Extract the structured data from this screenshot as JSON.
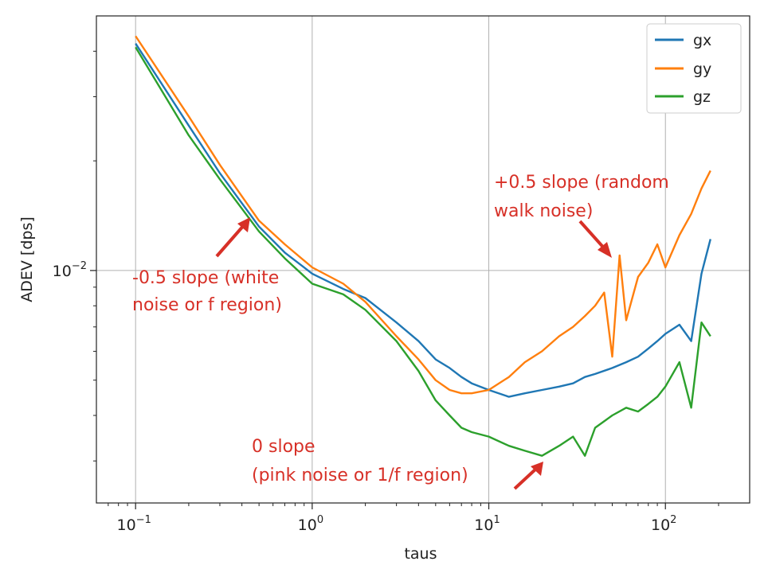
{
  "chart_data": {
    "type": "line",
    "title": "",
    "xlabel": "taus",
    "ylabel": "ADEV [dps]",
    "xscale": "log",
    "yscale": "log",
    "xlim": [
      0.06,
      300
    ],
    "ylim": [
      0.0023,
      0.05
    ],
    "x_ticks": [
      {
        "base": "10",
        "exp": "−1",
        "value": 0.1
      },
      {
        "base": "10",
        "exp": "0",
        "value": 1
      },
      {
        "base": "10",
        "exp": "1",
        "value": 10
      },
      {
        "base": "10",
        "exp": "2",
        "value": 100
      }
    ],
    "y_ticks": [
      {
        "base": "10",
        "exp": "−2",
        "value": 0.01
      }
    ],
    "grid": true,
    "legend": {
      "position": "upper right",
      "entries": [
        {
          "name": "gx",
          "color": "#1f77b4"
        },
        {
          "name": "gy",
          "color": "#ff7f0e"
        },
        {
          "name": "gz",
          "color": "#2ca02c"
        }
      ]
    },
    "series": [
      {
        "name": "gx",
        "color": "#1f77b4",
        "x": [
          0.1,
          0.2,
          0.3,
          0.5,
          0.7,
          1.0,
          1.5,
          2,
          3,
          4,
          5,
          6,
          7,
          8,
          10,
          13,
          16,
          20,
          25,
          30,
          35,
          40,
          50,
          60,
          70,
          80,
          90,
          100,
          120,
          140,
          160,
          180
        ],
        "y": [
          0.042,
          0.025,
          0.0185,
          0.0132,
          0.0112,
          0.0098,
          0.0089,
          0.0084,
          0.0072,
          0.0064,
          0.0057,
          0.0054,
          0.0051,
          0.0049,
          0.0047,
          0.0045,
          0.0046,
          0.0047,
          0.0048,
          0.0049,
          0.0051,
          0.0052,
          0.0054,
          0.0056,
          0.0058,
          0.0061,
          0.0064,
          0.0067,
          0.0071,
          0.0064,
          0.0098,
          0.0122
        ]
      },
      {
        "name": "gy",
        "color": "#ff7f0e",
        "x": [
          0.1,
          0.2,
          0.3,
          0.5,
          0.7,
          1.0,
          1.5,
          2,
          3,
          4,
          5,
          6,
          7,
          8,
          10,
          13,
          16,
          20,
          25,
          30,
          35,
          40,
          45,
          50,
          55,
          60,
          70,
          80,
          90,
          100,
          120,
          140,
          160,
          180
        ],
        "y": [
          0.044,
          0.0265,
          0.0195,
          0.0137,
          0.0118,
          0.0102,
          0.0092,
          0.0082,
          0.0066,
          0.0057,
          0.005,
          0.0047,
          0.0046,
          0.0046,
          0.0047,
          0.0051,
          0.0056,
          0.006,
          0.0066,
          0.007,
          0.0075,
          0.008,
          0.0087,
          0.0058,
          0.011,
          0.0073,
          0.0096,
          0.0105,
          0.0118,
          0.0102,
          0.0125,
          0.0143,
          0.0168,
          0.0188
        ]
      },
      {
        "name": "gz",
        "color": "#2ca02c",
        "x": [
          0.1,
          0.2,
          0.3,
          0.5,
          0.7,
          1.0,
          1.5,
          2,
          3,
          4,
          5,
          6,
          7,
          8,
          10,
          13,
          16,
          20,
          25,
          30,
          35,
          40,
          50,
          60,
          70,
          80,
          90,
          100,
          120,
          140,
          160,
          180
        ],
        "y": [
          0.041,
          0.0235,
          0.0178,
          0.0128,
          0.0108,
          0.0092,
          0.0086,
          0.0078,
          0.0064,
          0.0053,
          0.0044,
          0.004,
          0.0037,
          0.0036,
          0.0035,
          0.0033,
          0.0032,
          0.0031,
          0.0033,
          0.0035,
          0.0031,
          0.0037,
          0.004,
          0.0042,
          0.0041,
          0.0043,
          0.0045,
          0.0048,
          0.0056,
          0.0042,
          0.0072,
          0.0066
        ]
      }
    ],
    "annotations": [
      {
        "lines": [
          "+0.5 slope (random",
          "walk noise)"
        ],
        "color": "#d73027"
      },
      {
        "lines": [
          "-0.5 slope (white",
          "noise or f region)"
        ],
        "color": "#d73027"
      },
      {
        "lines": [
          "0 slope",
          "(pink noise or 1/f region)"
        ],
        "color": "#d73027"
      }
    ]
  }
}
